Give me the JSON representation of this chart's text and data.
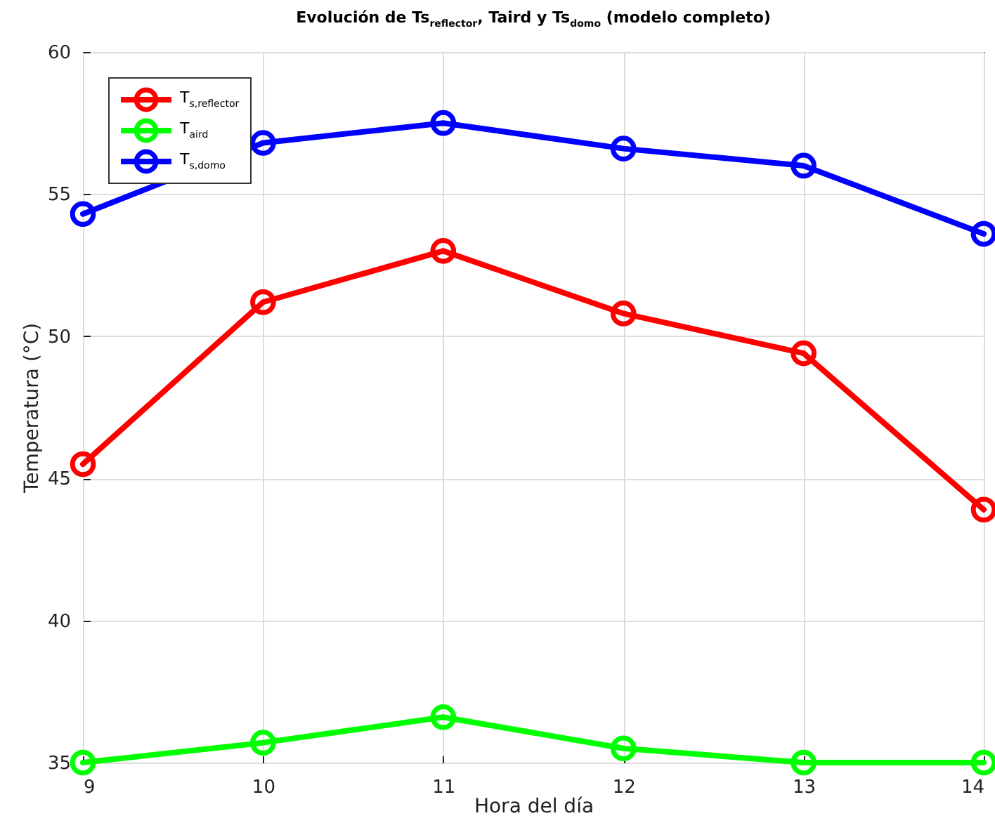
{
  "chart_data": {
    "type": "line",
    "title": "Evolución de Ts$_{reflector}$, Taird y Ts$_{domo}$ (modelo completo)",
    "xlabel": "Hora del día",
    "ylabel": "Temperatura (°C)",
    "x": [
      9,
      10,
      11,
      12,
      13,
      14
    ],
    "series": [
      {
        "name": "T$_{s,reflector}$",
        "color": "#ff0000",
        "values": [
          45.5,
          51.2,
          53.0,
          50.8,
          49.4,
          43.9
        ]
      },
      {
        "name": "T$_{aird}$",
        "color": "#00ff00",
        "values": [
          35.0,
          35.7,
          36.6,
          35.5,
          35.0,
          35.0
        ]
      },
      {
        "name": "T$_{s,domo}$",
        "color": "#0000ff",
        "values": [
          54.3,
          56.8,
          57.5,
          56.6,
          56.0,
          53.6
        ]
      }
    ],
    "xlim": [
      9,
      14
    ],
    "xticks": [
      9,
      10,
      11,
      12,
      13,
      14
    ],
    "ylim": [
      35,
      60
    ],
    "yticks": [
      35,
      40,
      45,
      50,
      55,
      60
    ],
    "grid": true,
    "legend": "top left",
    "marker": "circle",
    "line_style": "solid"
  }
}
